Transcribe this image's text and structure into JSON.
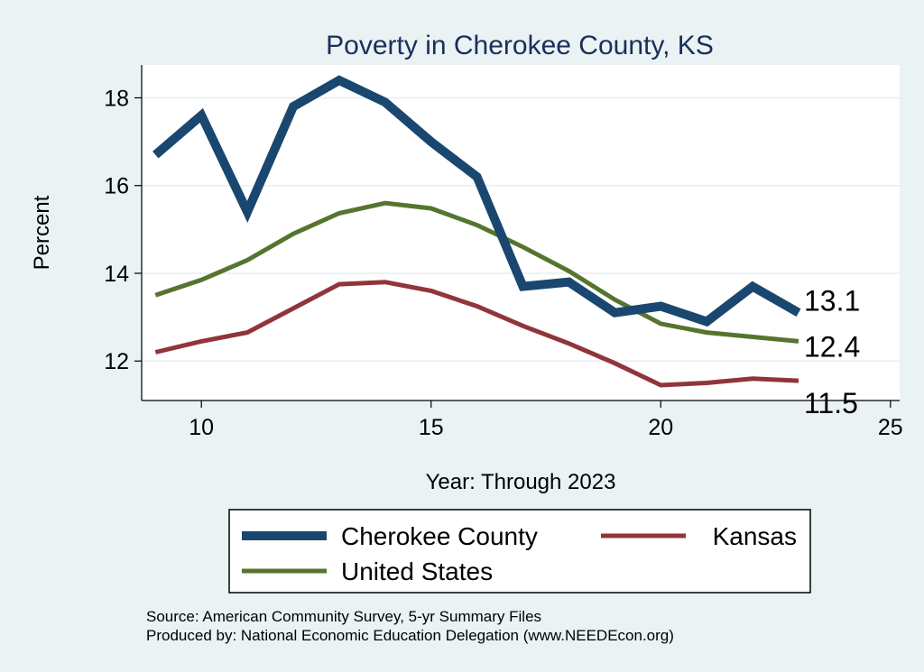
{
  "chart_data": {
    "type": "line",
    "title": "Poverty in Cherokee County, KS",
    "xlabel": "Year: Through 2023",
    "ylabel": "Percent",
    "xlim": [
      8.7,
      25.2
    ],
    "ylim": [
      11.1,
      18.75
    ],
    "xticks": [
      10,
      15,
      20,
      25
    ],
    "yticks": [
      12,
      14,
      16,
      18
    ],
    "x": [
      9,
      10,
      11,
      12,
      13,
      14,
      15,
      16,
      17,
      18,
      19,
      20,
      21,
      22,
      23
    ],
    "series": [
      {
        "name": "Cherokee County",
        "color": "#1a476f",
        "values": [
          16.7,
          17.6,
          15.4,
          17.8,
          18.4,
          17.9,
          17.0,
          16.2,
          13.7,
          13.8,
          13.1,
          13.25,
          12.9,
          13.7,
          13.1
        ],
        "end_label": "13.1"
      },
      {
        "name": "Kansas",
        "color": "#90353b",
        "values": [
          12.2,
          12.45,
          12.65,
          13.2,
          13.75,
          13.8,
          13.6,
          13.25,
          12.8,
          12.4,
          11.95,
          11.45,
          11.5,
          11.6,
          11.55
        ],
        "end_label": "11.5"
      },
      {
        "name": "United States",
        "color": "#55752f",
        "values": [
          13.5,
          13.85,
          14.3,
          14.9,
          15.37,
          15.6,
          15.48,
          15.1,
          14.6,
          14.05,
          13.4,
          12.85,
          12.65,
          12.55,
          12.45
        ],
        "end_label": "12.4"
      }
    ],
    "legend": [
      "Cherokee County",
      "Kansas",
      "United States"
    ],
    "legend_position": "bottom"
  },
  "notes": {
    "source": "Source: American Community Survey, 5-yr Summary Files",
    "produced_by": "Produced by: National Economic Education Delegation (www.NEEDEcon.org)"
  }
}
